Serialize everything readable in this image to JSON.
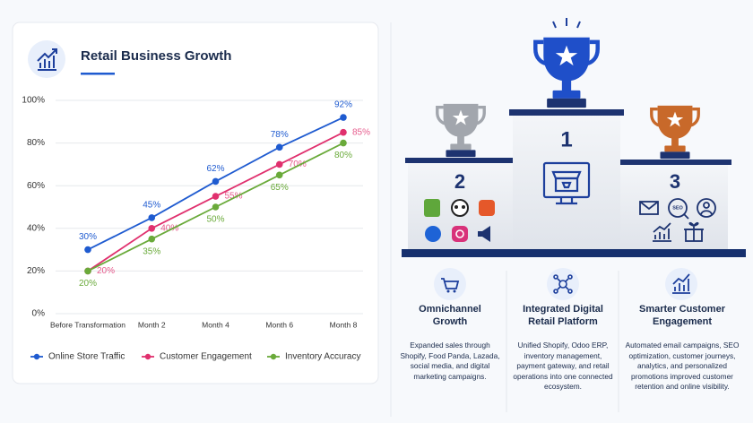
{
  "chart_data": {
    "type": "line",
    "title": "Retail Business Growth",
    "categories": [
      "Before Transformation",
      "Month 2",
      "Month 4",
      "Month 6",
      "Month 8"
    ],
    "series": [
      {
        "name": "Online Store Traffic",
        "color": "#1f5bd0",
        "values": [
          30,
          45,
          62,
          78,
          92
        ],
        "value_labels": [
          "30%",
          "45%",
          "62%",
          "78%",
          "92%"
        ]
      },
      {
        "name": "Customer Engagement",
        "color": "#e0306e",
        "values": [
          20,
          40,
          55,
          70,
          85
        ],
        "value_labels": [
          "20%",
          "40%",
          "55%",
          "70%",
          "85%"
        ]
      },
      {
        "name": "Inventory Accuracy",
        "color": "#6aaa3a",
        "values": [
          20,
          35,
          50,
          65,
          80
        ],
        "value_labels": [
          "20%",
          "35%",
          "50%",
          "65%",
          "80%"
        ]
      }
    ],
    "ylim": [
      0,
      100
    ],
    "yticks": [
      {
        "value": 0,
        "label": "0%"
      },
      {
        "value": 20,
        "label": "20%"
      },
      {
        "value": 40,
        "label": "40%"
      },
      {
        "value": 60,
        "label": "60%"
      },
      {
        "value": 80,
        "label": "80%"
      },
      {
        "value": 100,
        "label": "100%"
      }
    ],
    "grid": true,
    "legend": "bottom"
  },
  "podium": {
    "places": [
      "1",
      "2",
      "3"
    ],
    "seo_badge": "SEO"
  },
  "cards": [
    {
      "title": "Omnichannel Growth",
      "text": "Expanded sales through Shopify, Food Panda, Lazada, social media, and digital marketing campaigns."
    },
    {
      "title": "Integrated Digital Retail Platform",
      "text": "Unified Shopify, Odoo ERP, inventory management, payment gateway, and retail operations into one connected ecosystem."
    },
    {
      "title": "Smarter Customer Engagement",
      "text": "Automated email campaigns, SEO optimization, customer journeys, analytics, and personalized promotions improved customer retention and online visibility."
    }
  ]
}
